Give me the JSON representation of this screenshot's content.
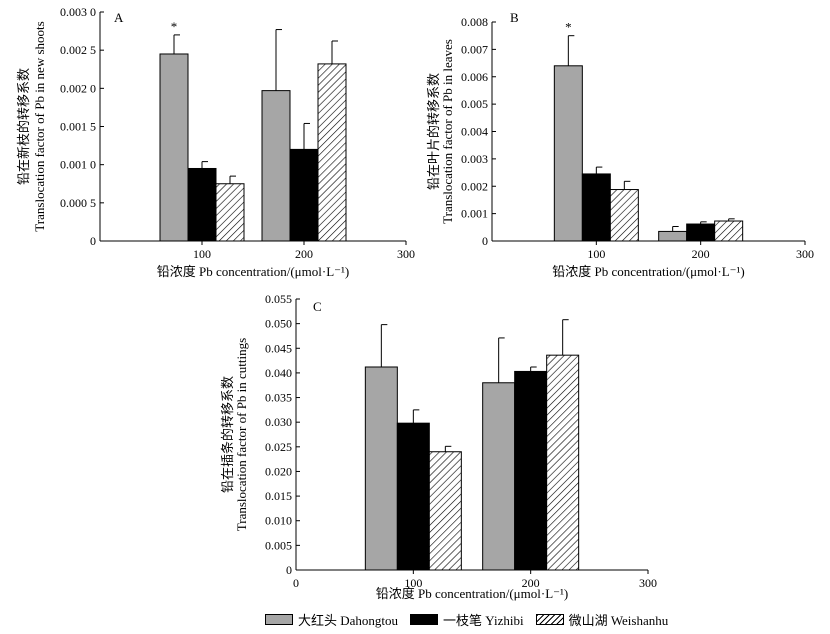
{
  "chart_data": [
    {
      "type": "bar",
      "panel_label": "A",
      "ylabel_cn": "铅在新枝的转移系数",
      "ylabel_en": "Translocation factor of Pb in new shoots",
      "xlabel": "铅浓度 Pb concentration/(μmol·L⁻¹)",
      "x_ticks": [
        "100",
        "200",
        "300"
      ],
      "y_ticks": [
        "0",
        "0.000 5",
        "0.001 0",
        "0.001 5",
        "0.002 0",
        "0.002 5",
        "0.003 0"
      ],
      "ylim": [
        0,
        0.003
      ],
      "categories": [
        "100",
        "200"
      ],
      "series": [
        {
          "name": "大红头 Dahongtou",
          "values": [
            0.00245,
            0.00197
          ],
          "errors": [
            0.00025,
            0.0008
          ]
        },
        {
          "name": "一枝笔 Yizhibi",
          "values": [
            0.00095,
            0.0012
          ],
          "errors": [
            9e-05,
            0.00034
          ]
        },
        {
          "name": "微山湖 Weishanhu",
          "values": [
            0.00075,
            0.00232
          ],
          "errors": [
            0.0001,
            0.0003
          ]
        }
      ],
      "annotations": [
        {
          "text": "*",
          "category": "100",
          "series": 0
        }
      ]
    },
    {
      "type": "bar",
      "panel_label": "B",
      "ylabel_cn": "铅在叶片的转移系数",
      "ylabel_en": "Translocation factor of Pb in leaves",
      "xlabel": "铅浓度 Pb concentration/(μmol·L⁻¹)",
      "x_ticks": [
        "100",
        "200",
        "300"
      ],
      "y_ticks": [
        "0",
        "0.001",
        "0.002",
        "0.003",
        "0.004",
        "0.005",
        "0.006",
        "0.007",
        "0.008"
      ],
      "ylim": [
        0,
        0.008
      ],
      "categories": [
        "100",
        "200"
      ],
      "series": [
        {
          "name": "大红头 Dahongtou",
          "values": [
            0.0064,
            0.00035
          ],
          "errors": [
            0.0011,
            0.00018
          ]
        },
        {
          "name": "一枝笔 Yizhibi",
          "values": [
            0.00245,
            0.00062
          ],
          "errors": [
            0.00025,
            8e-05
          ]
        },
        {
          "name": "微山湖 Weishanhu",
          "values": [
            0.00188,
            0.00073
          ],
          "errors": [
            0.0003,
            8e-05
          ]
        }
      ],
      "annotations": [
        {
          "text": "*",
          "category": "100",
          "series": 0
        }
      ]
    },
    {
      "type": "bar",
      "panel_label": "C",
      "ylabel_cn": "铅在插条的转移系数",
      "ylabel_en": "Translocation factor of Pb in cuttings",
      "xlabel": "铅浓度 Pb concentration/(μmol·L⁻¹)",
      "x_ticks": [
        "0",
        "100",
        "200",
        "300"
      ],
      "y_ticks": [
        "0",
        "0.005",
        "0.010",
        "0.015",
        "0.020",
        "0.025",
        "0.030",
        "0.035",
        "0.040",
        "0.045",
        "0.050",
        "0.055"
      ],
      "ylim": [
        0,
        0.055
      ],
      "categories": [
        "100",
        "200"
      ],
      "series": [
        {
          "name": "大红头 Dahongtou",
          "values": [
            0.0412,
            0.038
          ],
          "errors": [
            0.0086,
            0.0091
          ]
        },
        {
          "name": "一枝笔 Yizhibi",
          "values": [
            0.0298,
            0.0403
          ],
          "errors": [
            0.0027,
            0.0009
          ]
        },
        {
          "name": "微山湖 Weishanhu",
          "values": [
            0.024,
            0.0436
          ],
          "errors": [
            0.0011,
            0.0072
          ]
        }
      ],
      "annotations": []
    }
  ],
  "legend": [
    {
      "label": "大红头 Dahongtou",
      "fill": "#a6a6a6"
    },
    {
      "label": "一枝笔 Yizhibi",
      "fill": "#000000"
    },
    {
      "label": "微山湖 Weishanhu",
      "fill": "hatch"
    }
  ]
}
